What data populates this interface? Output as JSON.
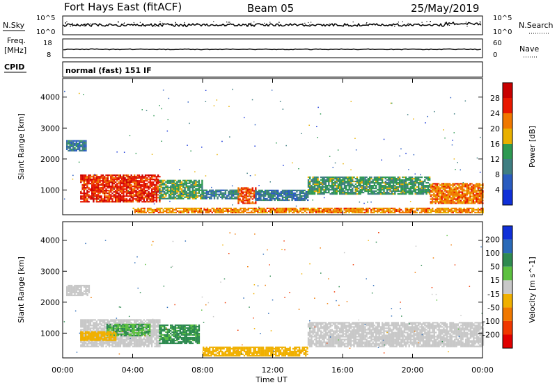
{
  "header": {
    "title": "Fort Hays East (fitACF)",
    "beam": "Beam 05",
    "date": "25/May/2019"
  },
  "strip_sky": {
    "left_label": "N.Sky",
    "right_label": "N.Search",
    "left_ticks": [
      "10^5",
      "10^0"
    ],
    "right_ticks": [
      "10^5",
      "10^0"
    ]
  },
  "strip_freq": {
    "left_label_1": "Freq.",
    "left_label_2": "[MHz]",
    "right_label": "Nave",
    "left_ticks": [
      "18",
      "8"
    ],
    "right_ticks": [
      "60",
      "0"
    ]
  },
  "cpid": {
    "label": "CPID",
    "value": "normal (fast) 151 IF"
  },
  "chart_data": [
    {
      "type": "heatmap",
      "quantity": "power",
      "xlabel": "",
      "ylabel": "Slant Range [km]",
      "yticks": [
        "1000",
        "2000",
        "3000",
        "4000"
      ],
      "ylim": [
        200,
        4600
      ],
      "xlim_hours": [
        0,
        24
      ],
      "colorbar": {
        "label": "Power [dB]",
        "ticks": [
          "4",
          "8",
          "12",
          "16",
          "20",
          "24",
          "28"
        ],
        "range": [
          0,
          32
        ],
        "colors": [
          "#1030d8",
          "#2a5cc0",
          "#3f7e82",
          "#2e9a52",
          "#e8b000",
          "#f07800",
          "#e81800",
          "#c80000"
        ]
      },
      "regions": [
        {
          "t0": 0.2,
          "t1": 1.3,
          "r0": 2250,
          "r1": 2600,
          "level": 9
        },
        {
          "t0": 1.0,
          "t1": 5.5,
          "r0": 600,
          "r1": 1500,
          "level": 26
        },
        {
          "t0": 5.5,
          "t1": 8.0,
          "r0": 700,
          "r1": 1300,
          "level": 14
        },
        {
          "t0": 8.0,
          "t1": 10.0,
          "r0": 700,
          "r1": 1000,
          "level": 10
        },
        {
          "t0": 10.0,
          "t1": 11.0,
          "r0": 550,
          "r1": 1050,
          "level": 24
        },
        {
          "t0": 11.0,
          "t1": 14.0,
          "r0": 650,
          "r1": 1000,
          "level": 9
        },
        {
          "t0": 14.0,
          "t1": 21.0,
          "r0": 850,
          "r1": 1400,
          "level": 13
        },
        {
          "t0": 21.0,
          "t1": 24.0,
          "r0": 550,
          "r1": 1200,
          "level": 22
        },
        {
          "t0": 4.0,
          "t1": 24.0,
          "r0": 250,
          "r1": 400,
          "level": 21
        }
      ]
    },
    {
      "type": "heatmap",
      "quantity": "velocity",
      "xlabel": "Time UT",
      "ylabel": "Slant Range [km]",
      "yticks": [
        "1000",
        "2000",
        "3000",
        "4000"
      ],
      "ylim": [
        200,
        4600
      ],
      "xticks": [
        "00:00",
        "04:00",
        "08:00",
        "12:00",
        "16:00",
        "20:00",
        "00:00"
      ],
      "xlim_hours": [
        0,
        24
      ],
      "colorbar": {
        "label": "Velocity [m s^-1]",
        "ticks": [
          "200",
          "100",
          "50",
          "15",
          "-15",
          "-50",
          "-100",
          "-200"
        ],
        "colors": [
          "#1030d8",
          "#2a6ab8",
          "#2e8a50",
          "#5cc040",
          "#c8c8c8",
          "#f0b000",
          "#f07800",
          "#f03800",
          "#e00000"
        ]
      },
      "regions": [
        {
          "t0": 0.2,
          "t1": 1.5,
          "r0": 2200,
          "r1": 2550,
          "v": 0
        },
        {
          "t0": 1.0,
          "t1": 5.5,
          "r0": 550,
          "r1": 1450,
          "v": 0
        },
        {
          "t0": 2.5,
          "t1": 5.0,
          "r0": 900,
          "r1": 1300,
          "v": 30
        },
        {
          "t0": 5.5,
          "t1": 7.8,
          "r0": 650,
          "r1": 1250,
          "v": 35
        },
        {
          "t0": 1.0,
          "t1": 3.0,
          "r0": 750,
          "r1": 1050,
          "v": -25
        },
        {
          "t0": 14.0,
          "t1": 24.0,
          "r0": 550,
          "r1": 1350,
          "v": 0
        },
        {
          "t0": 8.0,
          "t1": 14.0,
          "r0": 250,
          "r1": 550,
          "v": -30
        }
      ]
    }
  ]
}
